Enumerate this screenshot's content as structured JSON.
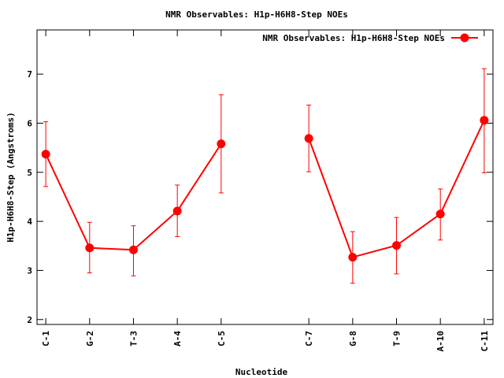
{
  "chart_data": {
    "type": "line",
    "title": "NMR Observables: H1p-H6H8-Step NOEs",
    "xlabel": "Nucleotide",
    "ylabel": "H1p-H6H8-Step (Angstroms)",
    "ylim": [
      1.9,
      7.9
    ],
    "yticks": [
      2,
      3,
      4,
      5,
      6,
      7
    ],
    "xlim": [
      0.8,
      11.2
    ],
    "xticks": [
      {
        "x": 1,
        "label": "C-1"
      },
      {
        "x": 2,
        "label": "G-2"
      },
      {
        "x": 3,
        "label": "T-3"
      },
      {
        "x": 4,
        "label": "A-4"
      },
      {
        "x": 5,
        "label": "C-5"
      },
      {
        "x": 7,
        "label": "C-7"
      },
      {
        "x": 8,
        "label": "G-8"
      },
      {
        "x": 9,
        "label": "T-9"
      },
      {
        "x": 10,
        "label": "A-10"
      },
      {
        "x": 11,
        "label": "C-11"
      }
    ],
    "grid": false,
    "legend_position": "top-right",
    "series": [
      {
        "name": "NMR Observables: H1p-H6H8-Step NOEs",
        "color": "#ff0000",
        "segments": [
          [
            {
              "x": 1,
              "y": 5.37,
              "ylow": 4.71,
              "yhigh": 6.03
            },
            {
              "x": 2,
              "y": 3.46,
              "ylow": 2.95,
              "yhigh": 3.98
            },
            {
              "x": 3,
              "y": 3.42,
              "ylow": 2.89,
              "yhigh": 3.91
            },
            {
              "x": 4,
              "y": 4.21,
              "ylow": 3.69,
              "yhigh": 4.74
            },
            {
              "x": 5,
              "y": 5.58,
              "ylow": 4.58,
              "yhigh": 6.58
            }
          ],
          [
            {
              "x": 7,
              "y": 5.69,
              "ylow": 5.01,
              "yhigh": 6.37
            },
            {
              "x": 8,
              "y": 3.27,
              "ylow": 2.74,
              "yhigh": 3.79
            },
            {
              "x": 9,
              "y": 3.51,
              "ylow": 2.93,
              "yhigh": 4.08
            },
            {
              "x": 10,
              "y": 4.15,
              "ylow": 3.62,
              "yhigh": 4.66
            },
            {
              "x": 11,
              "y": 6.06,
              "ylow": 4.99,
              "yhigh": 7.11
            }
          ]
        ]
      }
    ]
  }
}
